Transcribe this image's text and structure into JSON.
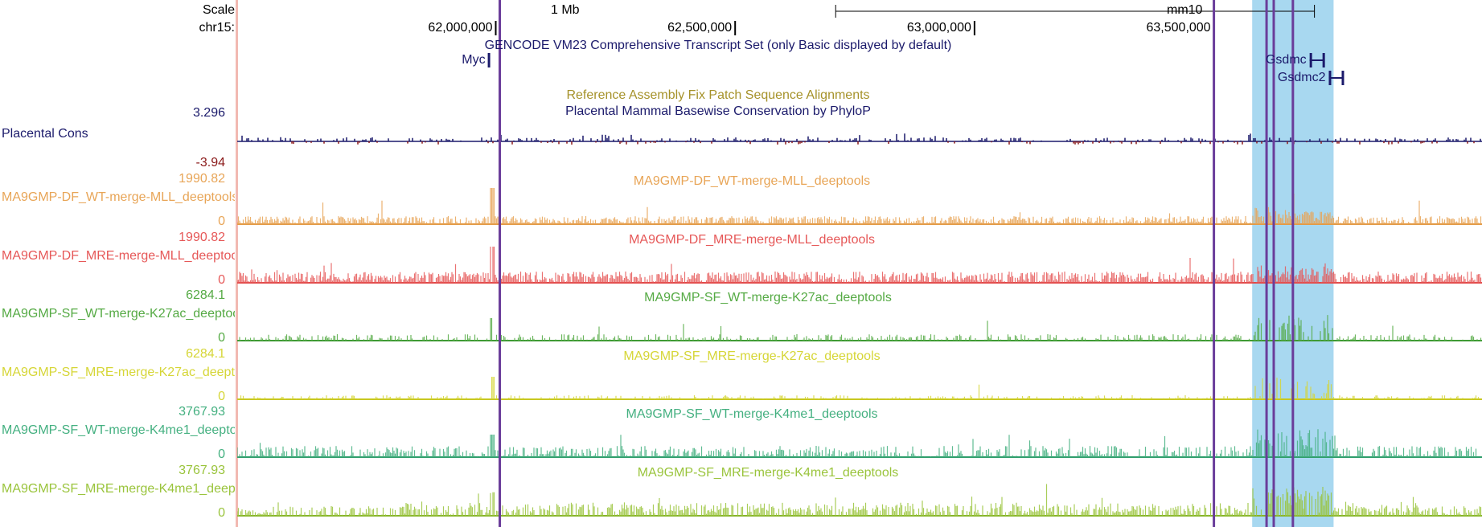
{
  "browser": {
    "scale_label": "Scale",
    "chrom_label": "chr15:",
    "scale_bar_label": "1 Mb",
    "assembly": "mm10",
    "positions": [
      {
        "pos": 62000000,
        "label": "62,000,000"
      },
      {
        "pos": 62500000,
        "label": "62,500,000"
      },
      {
        "pos": 63000000,
        "label": "63,000,000"
      },
      {
        "pos": 63500000,
        "label": "63,500,000"
      }
    ],
    "view_range": [
      61460000,
      64060000
    ],
    "scale_bar_range": [
      62710000,
      63710000
    ],
    "highlight_range": [
      63580000,
      63750000
    ],
    "vertical_markers": [
      62000000,
      63500000,
      63610000,
      63625000,
      63665000
    ]
  },
  "genes": {
    "track_title": "GENCODE VM23 Comprehensive Transcript Set (only Basic displayed by default)",
    "items": [
      {
        "name": "Myc",
        "pos": 61985000
      },
      {
        "name": "Gsdmc",
        "pos": 63700000
      },
      {
        "name": "Gsdmc2",
        "pos": 63740000
      }
    ]
  },
  "fix_patch": {
    "title": "Reference Assembly Fix Patch Sequence Alignments",
    "color": "#a6922a"
  },
  "conservation": {
    "title": "Placental Mammal Basewise Conservation by PhyloP",
    "label": "Placental Cons",
    "max_label": "3.296",
    "min_label": "-3.94",
    "color": "#1b1a6b",
    "neg_color": "#8b1a1a"
  },
  "signal_tracks": [
    {
      "id": "df-wt-mll",
      "title": "MA9GMP-DF_WT-merge-MLL_deeptools",
      "label": "MA9GMP-DF_WT-merge-MLL_deeptools",
      "max_label": "1990.82",
      "min_label": "0",
      "color": "#e8a557",
      "baseline_color": "#e39a45"
    },
    {
      "id": "df-mre-mll",
      "title": "MA9GMP-DF_MRE-merge-MLL_deeptools",
      "label": "MA9GMP-DF_MRE-merge-MLL_deeptools",
      "max_label": "1990.82",
      "min_label": "0",
      "color": "#e65858",
      "baseline_color": "#e04848"
    },
    {
      "id": "sf-wt-k27ac",
      "title": "MA9GMP-SF_WT-merge-K27ac_deeptools",
      "label": "MA9GMP-SF_WT-merge-K27ac_deeptools",
      "max_label": "6284.1",
      "min_label": "0",
      "color": "#55aa44",
      "baseline_color": "#3f9a35"
    },
    {
      "id": "sf-mre-k27ac",
      "title": "MA9GMP-SF_MRE-merge-K27ac_deeptools",
      "label": "MA9GMP-SF_MRE-merge-K27ac_deeptools",
      "max_label": "6284.1",
      "min_label": "0",
      "color": "#d6d637",
      "baseline_color": "#c8c820"
    },
    {
      "id": "sf-wt-k4me1",
      "title": "MA9GMP-SF_WT-merge-K4me1_deeptools",
      "label": "MA9GMP-SF_WT-merge-K4me1_deeptools",
      "max_label": "3767.93",
      "min_label": "0",
      "color": "#44b080",
      "baseline_color": "#2f9e6c"
    },
    {
      "id": "sf-mre-k4me1",
      "title": "MA9GMP-SF_MRE-merge-K4me1_deeptools",
      "label": "MA9GMP-SF_MRE-merge-K4me1_deeptools",
      "max_label": "3767.93",
      "min_label": "0",
      "color": "#9ac43c",
      "baseline_color": "#86b42a"
    }
  ],
  "colors": {
    "highlight": "#a8d8f0",
    "marker": "#6a3d9a",
    "gene": "#1b1a6b",
    "label_dark": "#1b1a6b"
  }
}
